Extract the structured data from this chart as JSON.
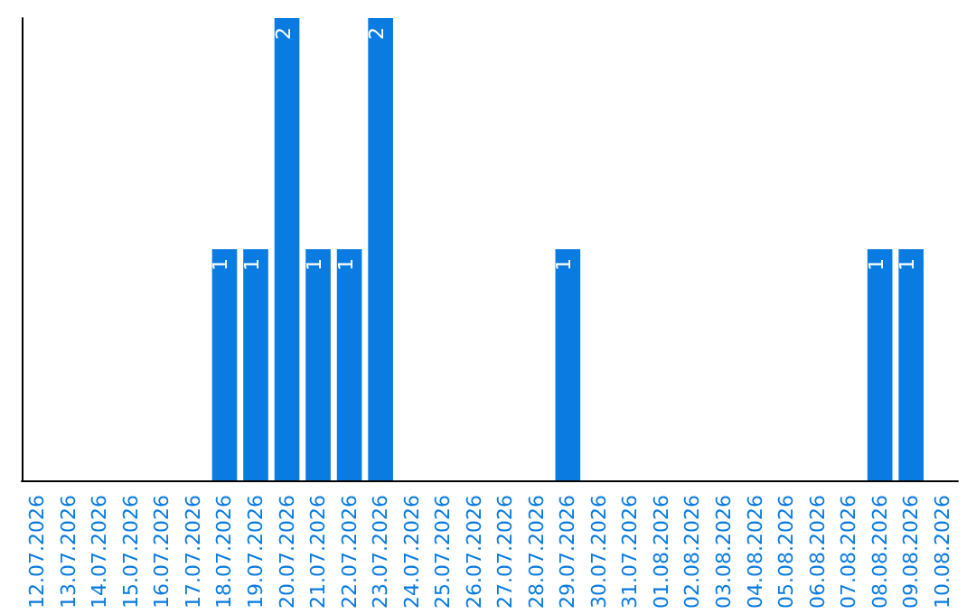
{
  "chart_data": {
    "type": "bar",
    "categories": [
      "12.07.2026",
      "13.07.2026",
      "14.07.2026",
      "15.07.2026",
      "16.07.2026",
      "17.07.2026",
      "18.07.2026",
      "19.07.2026",
      "20.07.2026",
      "21.07.2026",
      "22.07.2026",
      "23.07.2026",
      "24.07.2026",
      "25.07.2026",
      "26.07.2026",
      "27.07.2026",
      "28.07.2026",
      "29.07.2026",
      "30.07.2026",
      "31.07.2026",
      "01.08.2026",
      "02.08.2026",
      "03.08.2026",
      "04.08.2026",
      "05.08.2026",
      "06.08.2026",
      "07.08.2026",
      "08.08.2026",
      "09.08.2026",
      "10.08.2026"
    ],
    "values": [
      0,
      0,
      0,
      0,
      0,
      0,
      1,
      1,
      2,
      1,
      1,
      2,
      0,
      0,
      0,
      0,
      0,
      1,
      0,
      0,
      0,
      0,
      0,
      0,
      0,
      0,
      0,
      1,
      1,
      0
    ],
    "value_labels": [
      null,
      null,
      null,
      null,
      null,
      null,
      "1",
      "1",
      "2",
      "1",
      "1",
      "2",
      null,
      null,
      null,
      null,
      null,
      "1",
      null,
      null,
      null,
      null,
      null,
      null,
      null,
      null,
      null,
      "1",
      "1",
      null
    ],
    "color": "#0a7be0",
    "tick_labels": "x",
    "grid": false
  }
}
